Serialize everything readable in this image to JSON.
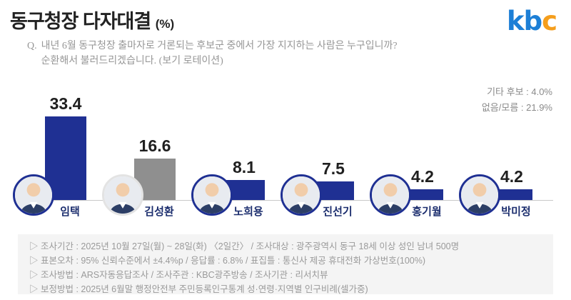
{
  "header": {
    "title": "동구청장 다자대결",
    "title_unit": "(%)",
    "logo": {
      "k": "k",
      "b": "b",
      "c": "c"
    }
  },
  "question": {
    "prefix": "Q.",
    "line1": "내년 6월 동구청장 출마자로 거론되는 후보군 중에서 가장 지지하는 사람은 누구입니까?",
    "line2": "순환해서 불러드리겠습니다. (보기 로테이션)"
  },
  "side_note": {
    "other": "기타 후보 : 4.0%",
    "none": "없음/모름 : 21.9%"
  },
  "chart_data": {
    "type": "bar",
    "title": "동구청장 다자대결 (%)",
    "categories": [
      "임택",
      "김성환",
      "노희용",
      "진선기",
      "홍기월",
      "박미정"
    ],
    "values": [
      33.4,
      16.6,
      8.1,
      7.5,
      4.2,
      4.2
    ],
    "bar_colors": [
      "#1f3093",
      "#8f8f8f",
      "#1f3093",
      "#1f3093",
      "#1f3093",
      "#1f3093"
    ],
    "ring_colors": [
      "#1f3093",
      "#e3e3e3",
      "#1f3093",
      "#1f3093",
      "#1f3093",
      "#1f3093"
    ],
    "unit": "%",
    "ylim": [
      0,
      40
    ],
    "grid": false,
    "legend": "none",
    "annotations": [
      "기타 후보 : 4.0%",
      "없음/모름 : 21.9%"
    ]
  },
  "footer": {
    "lines": [
      "▷ 조사기간 : 2025년 10월 27일(월) ~ 28일(화) 〈2일간〉 / 조사대상 : 광주광역시 동구 18세 이상 성인 남녀 500명",
      "▷ 표본오차 : 95% 신뢰수준에서 ±4.4%p / 응답률 : 6.8% / 표집틀 : 통신사 제공 휴대전화 가상번호(100%)",
      "▷ 조사방법 : ARS자동응답조사 / 조사주관 : KBC광주방송 / 조사기관 : 리서치뷰",
      "▷ 보정방법 : 2025년 6월말 행정안전부 주민등록인구통계 성·연령·지역별 인구비례(셀가중)"
    ]
  },
  "colors": {
    "bar_navy": "#1f3093",
    "bar_gray": "#8f8f8f",
    "name_navy": "#1c2e6e",
    "logo_blue": "#1d7fd6",
    "logo_orange": "#f59e1c",
    "footer_bg": "#f4f4f4",
    "baseline_gray": "#c9c9c9"
  }
}
